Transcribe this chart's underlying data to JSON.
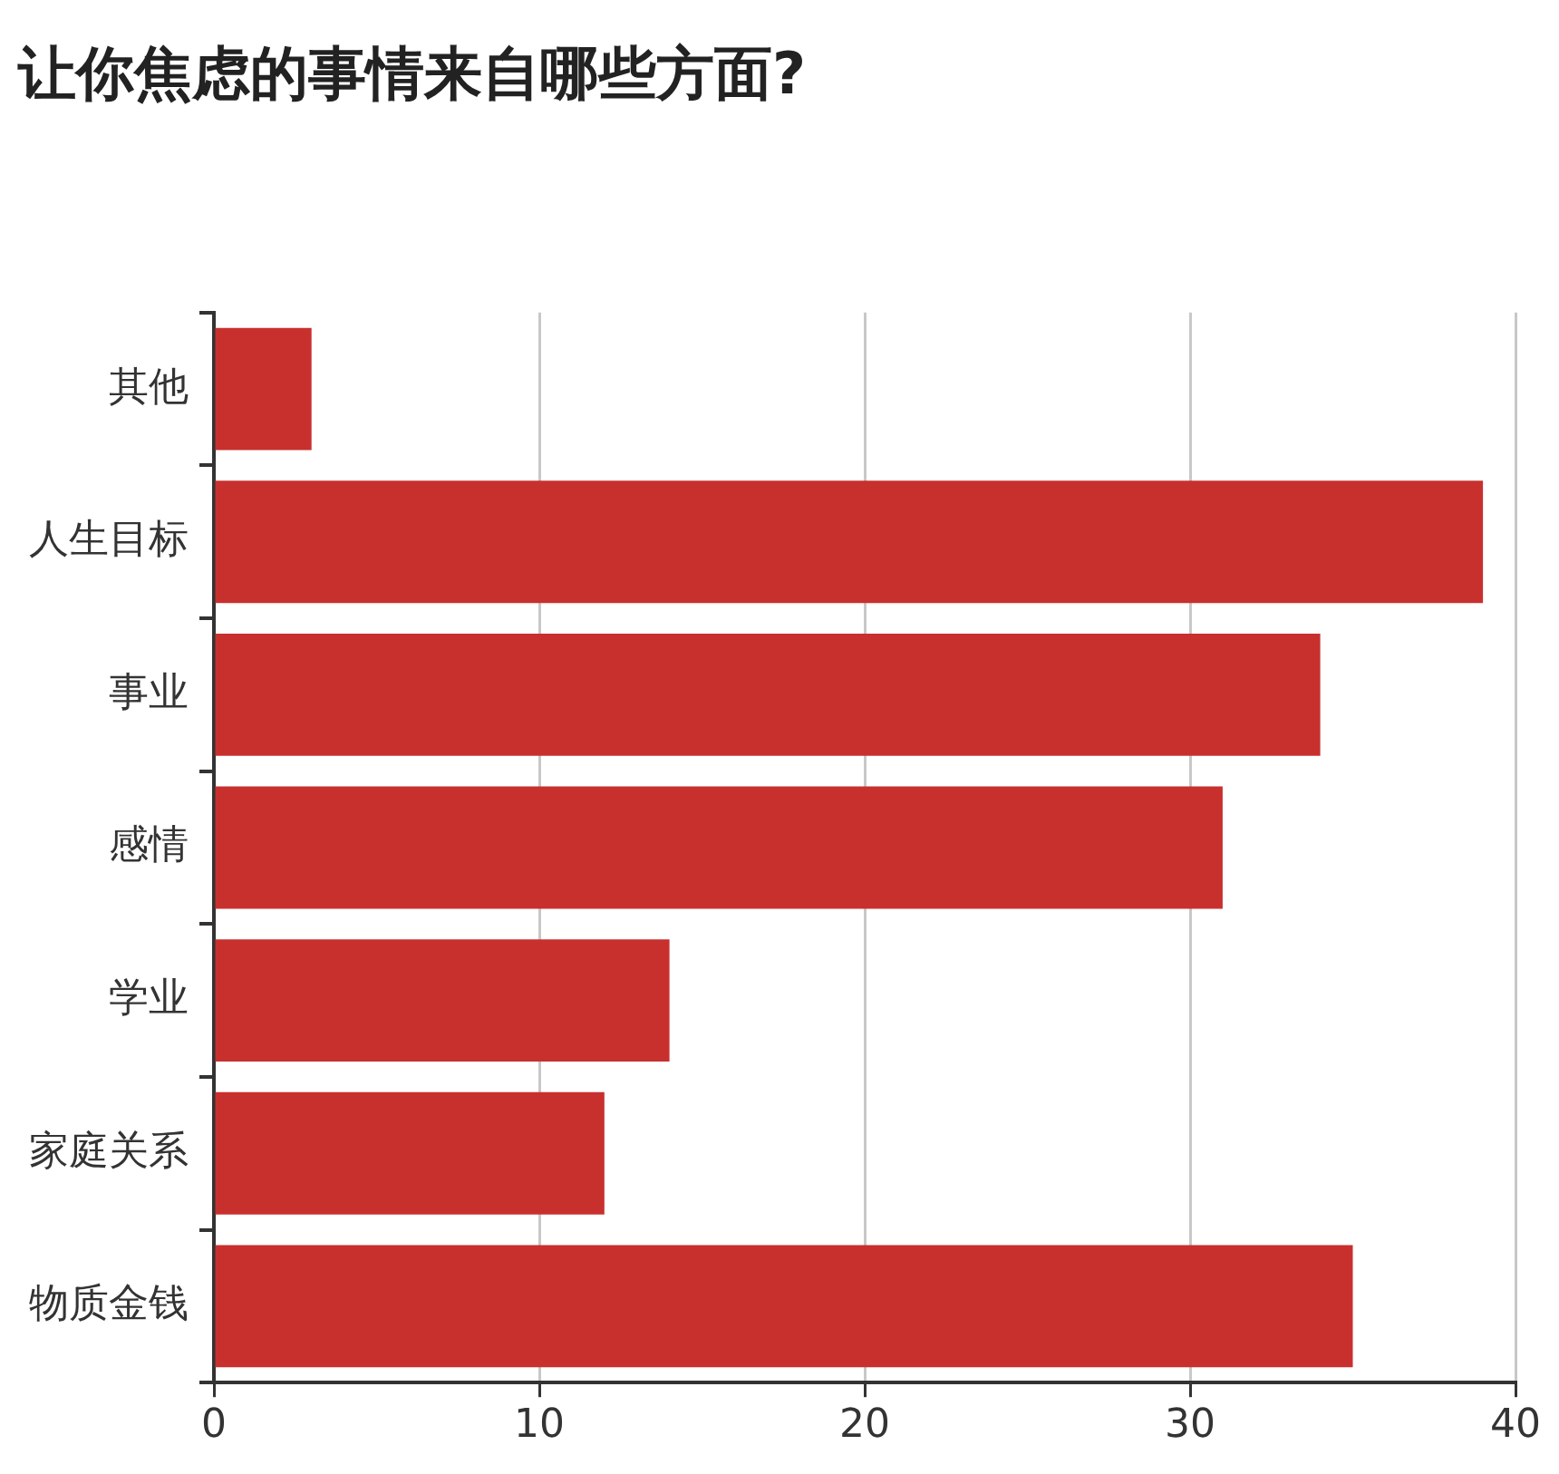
{
  "chart_data": {
    "type": "bar",
    "orientation": "horizontal",
    "title": "让你焦虑的事情来自哪些方面?",
    "categories": [
      "其他",
      "人生目标",
      "事业",
      "感情",
      "学业",
      "家庭关系",
      "物质金钱"
    ],
    "values": [
      3,
      39,
      34,
      31,
      14,
      12,
      35
    ],
    "color": "#c8302e",
    "xlim": [
      0,
      40
    ],
    "xticks": [
      0,
      10,
      20,
      30,
      40
    ],
    "grid": "x",
    "legend": false
  }
}
